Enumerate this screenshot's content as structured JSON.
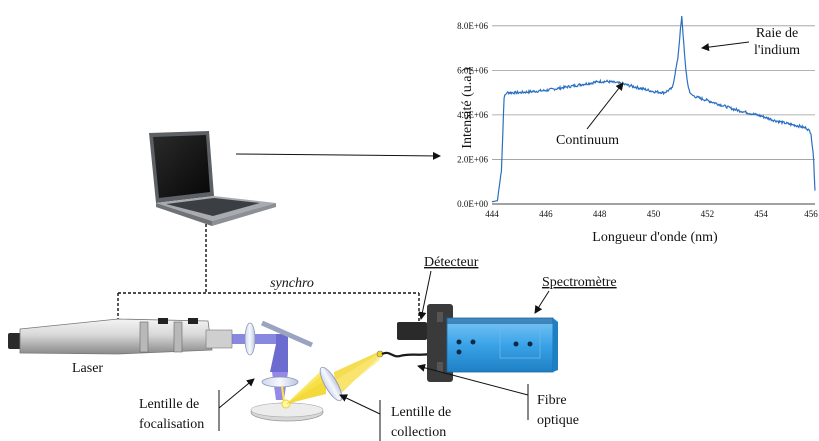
{
  "chart_data": {
    "type": "line",
    "title": "",
    "xlabel": "Longueur d'onde (nm)",
    "ylabel": "Intensité (u.a.)",
    "xlim": [
      444,
      456
    ],
    "ylim": [
      0,
      8800000
    ],
    "x_ticks": [
      "444",
      "446",
      "448",
      "450",
      "452",
      "454",
      "456"
    ],
    "y_ticks": [
      "0.0E+00",
      "2.0E+06",
      "4.0E+06",
      "6.0E+06",
      "8.0E+06"
    ],
    "grid": "horizontal",
    "line_color": "#2a6fc0",
    "series": [
      {
        "x": [
          444.0,
          444.2,
          444.35,
          444.45,
          444.55,
          445.0,
          445.5,
          446.0,
          446.5,
          447.0,
          447.5,
          448.0,
          448.3,
          448.6,
          449.0,
          449.5,
          450.0,
          450.4,
          450.7,
          450.9,
          451.0,
          451.05,
          451.1,
          451.2,
          451.3,
          451.4,
          451.6,
          452.0,
          452.5,
          453.0,
          453.5,
          454.0,
          454.5,
          455.0,
          455.4,
          455.7,
          455.85,
          455.95,
          456.0
        ],
        "y": [
          100000,
          150000,
          1500000,
          4800000,
          5000000,
          5000000,
          5050000,
          5100000,
          5200000,
          5300000,
          5400000,
          5500000,
          5500000,
          5450000,
          5350000,
          5200000,
          5050000,
          5000000,
          5200000,
          6500000,
          7800000,
          8400000,
          7600000,
          6000000,
          5200000,
          4900000,
          4800000,
          4650000,
          4450000,
          4250000,
          4100000,
          3950000,
          3750000,
          3600000,
          3500000,
          3400000,
          3200000,
          2000000,
          600000
        ]
      }
    ],
    "annotations": [
      "Raie de l'indium",
      "Continuum"
    ]
  },
  "labels": {
    "raie_line1": "Raie de",
    "raie_line2": "l'indium",
    "continuum": "Continuum",
    "synchro": "synchro",
    "detecteur": "Détecteur",
    "spectrometre": "Spectromètre",
    "laser": "Laser",
    "fibre_line1": "Fibre",
    "fibre_line2": "optique",
    "lentille_foc_line1": "Lentille de",
    "lentille_foc_line2": "focalisation",
    "lentille_col_line1": "Lentille de",
    "lentille_col_line2": "collection"
  },
  "colors": {
    "spectrometer_blue": "#3aa3e8",
    "beam_blue": "#6a6ad8",
    "collection_yellow": "#f2d21a"
  }
}
